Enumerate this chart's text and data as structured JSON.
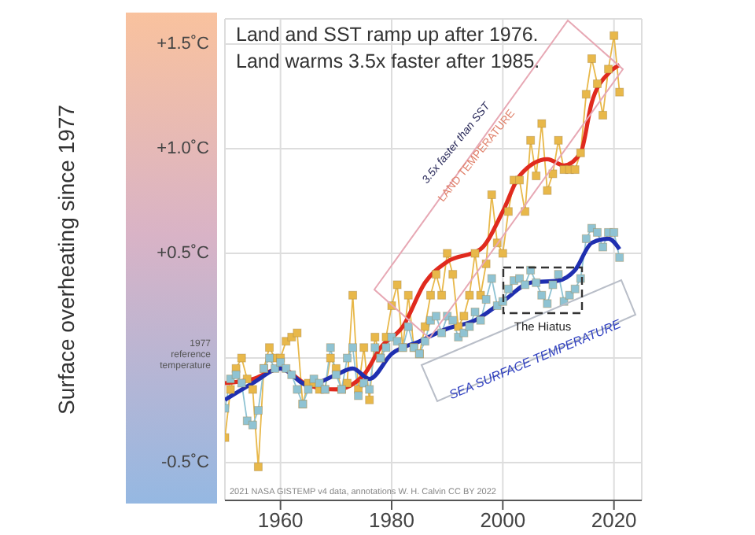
{
  "chart_data": {
    "type": "line",
    "title": "Land and SST ramp up after 1976.",
    "subtitle": "Land warms 3.5x faster after 1985.",
    "ylabel": "Surface overheating since 1977",
    "xlim": [
      1950,
      2025
    ],
    "xticks": [
      1960,
      1980,
      2000,
      2020
    ],
    "ylim": [
      -0.68,
      1.62
    ],
    "yticks": [
      {
        "value": -0.5,
        "label": "-0.5˚C"
      },
      {
        "value": 0,
        "label": null
      },
      {
        "value": 0.5,
        "label": "+0.5˚C"
      },
      {
        "value": 1.0,
        "label": "+1.0˚C"
      },
      {
        "value": 1.5,
        "label": "+1.5˚C"
      }
    ],
    "grid": true,
    "series": [
      {
        "color": "#e8b84a",
        "marker": "square",
        "x": [
          1950,
          1951,
          1952,
          1953,
          1954,
          1955,
          1956,
          1957,
          1958,
          1959,
          1960,
          1961,
          1962,
          1963,
          1964,
          1965,
          1966,
          1967,
          1968,
          1969,
          1970,
          1971,
          1972,
          1973,
          1974,
          1975,
          1976,
          1977,
          1978,
          1979,
          1980,
          1981,
          1982,
          1983,
          1984,
          1985,
          1986,
          1987,
          1988,
          1989,
          1990,
          1991,
          1992,
          1993,
          1994,
          1995,
          1996,
          1997,
          1998,
          1999,
          2000,
          2001,
          2002,
          2003,
          2004,
          2005,
          2006,
          2007,
          2008,
          2009,
          2010,
          2011,
          2012,
          2013,
          2014,
          2015,
          2016,
          2017,
          2018,
          2019,
          2020,
          2021
        ],
        "values": [
          -0.38,
          -0.15,
          -0.05,
          0.0,
          -0.1,
          -0.15,
          -0.52,
          -0.05,
          0.05,
          0.0,
          0.0,
          0.08,
          0.1,
          0.12,
          -0.22,
          -0.12,
          -0.12,
          -0.15,
          -0.15,
          0.0,
          -0.05,
          -0.15,
          -0.12,
          0.3,
          -0.15,
          0.05,
          -0.2,
          0.1,
          0.0,
          0.1,
          0.25,
          0.35,
          0.05,
          0.3,
          0.05,
          0.02,
          0.15,
          0.3,
          0.4,
          0.3,
          0.5,
          0.4,
          0.15,
          0.2,
          0.3,
          0.5,
          0.3,
          0.45,
          0.78,
          0.55,
          0.5,
          0.7,
          0.85,
          0.85,
          0.7,
          1.04,
          0.87,
          1.12,
          0.8,
          0.88,
          1.04,
          0.9,
          0.9,
          0.9,
          0.98,
          1.26,
          1.43,
          1.31,
          1.16,
          1.38,
          1.54,
          1.27
        ]
      },
      {
        "color": "#8fc3d3",
        "marker": "square",
        "x": [
          1950,
          1951,
          1952,
          1953,
          1954,
          1955,
          1956,
          1957,
          1958,
          1959,
          1960,
          1961,
          1962,
          1963,
          1964,
          1965,
          1966,
          1967,
          1968,
          1969,
          1970,
          1971,
          1972,
          1973,
          1974,
          1975,
          1976,
          1977,
          1978,
          1979,
          1980,
          1981,
          1982,
          1983,
          1984,
          1985,
          1986,
          1987,
          1988,
          1989,
          1990,
          1991,
          1992,
          1993,
          1994,
          1995,
          1996,
          1997,
          1998,
          1999,
          2000,
          2001,
          2002,
          2003,
          2004,
          2005,
          2006,
          2007,
          2008,
          2009,
          2010,
          2011,
          2012,
          2013,
          2014,
          2015,
          2016,
          2017,
          2018,
          2019,
          2020,
          2021
        ],
        "values": [
          -0.24,
          -0.1,
          -0.08,
          -0.12,
          -0.3,
          -0.32,
          -0.25,
          -0.05,
          0.0,
          -0.05,
          -0.02,
          -0.05,
          -0.08,
          -0.15,
          -0.22,
          -0.15,
          -0.1,
          -0.12,
          -0.15,
          0.05,
          -0.08,
          -0.15,
          0.0,
          0.05,
          -0.18,
          -0.12,
          -0.15,
          0.05,
          0.0,
          0.05,
          0.1,
          0.08,
          0.05,
          0.15,
          0.05,
          0.02,
          0.08,
          0.18,
          0.2,
          0.12,
          0.2,
          0.18,
          0.1,
          0.12,
          0.15,
          0.22,
          0.18,
          0.28,
          0.38,
          0.25,
          0.27,
          0.33,
          0.37,
          0.38,
          0.35,
          0.42,
          0.36,
          0.3,
          0.26,
          0.35,
          0.4,
          0.27,
          0.3,
          0.33,
          0.38,
          0.57,
          0.62,
          0.6,
          0.53,
          0.6,
          0.6,
          0.48
        ]
      },
      {
        "color": "#e02a1e",
        "marker": "none",
        "x": [
          1950,
          1955,
          1960,
          1965,
          1970,
          1975,
          1978,
          1982,
          1986,
          1990,
          1996,
          2000,
          2003,
          2008,
          2011,
          2014,
          2016,
          2019,
          2021
        ],
        "values": [
          -0.12,
          -0.1,
          -0.05,
          -0.13,
          -0.15,
          -0.08,
          0.05,
          0.15,
          0.36,
          0.46,
          0.52,
          0.7,
          0.87,
          0.95,
          0.92,
          0.98,
          1.22,
          1.36,
          1.4
        ]
      },
      {
        "color": "#1f2fb0",
        "marker": "none",
        "x": [
          1950,
          1955,
          1960,
          1965,
          1970,
          1973,
          1976,
          1980,
          1985,
          1990,
          1995,
          2000,
          2005,
          2010,
          2013,
          2016,
          2019,
          2021
        ],
        "values": [
          -0.2,
          -0.12,
          -0.05,
          -0.13,
          -0.08,
          -0.05,
          -0.1,
          0.02,
          0.08,
          0.14,
          0.18,
          0.27,
          0.36,
          0.37,
          0.42,
          0.55,
          0.57,
          0.52
        ]
      }
    ],
    "annotations": [
      "3.5x faster than SST",
      "LAND TEMPERATURE",
      "The Hiatus",
      "SEA SURFACE TEMPERATURE",
      "2021 NASA GISTEMP v4 data, annotations W. H. Calvin CC BY 2022",
      "1977 reference temperature"
    ]
  }
}
